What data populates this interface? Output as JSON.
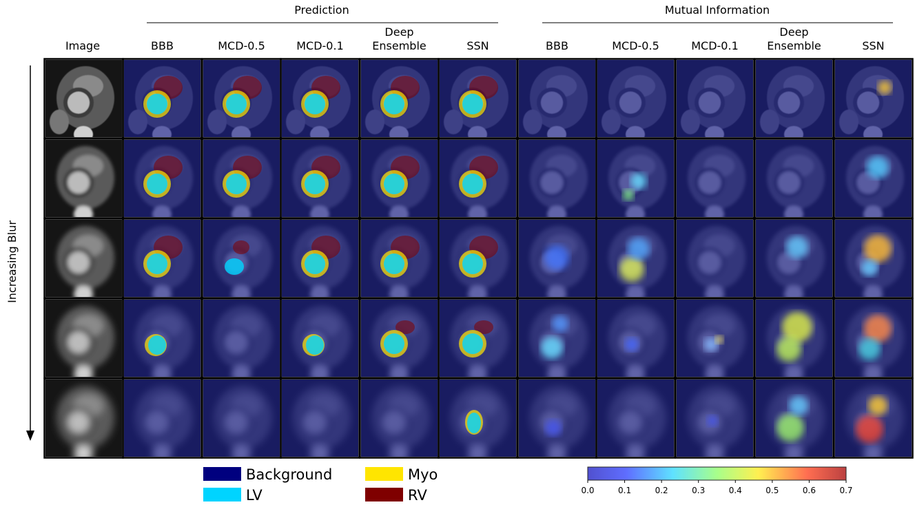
{
  "header": {
    "groups": [
      "Prediction",
      "Mutual Information"
    ]
  },
  "image_column": "Image",
  "prediction_columns": [
    [
      "BBB"
    ],
    [
      "MCD-0.5"
    ],
    [
      "MCD-0.1"
    ],
    [
      "Deep",
      "Ensemble"
    ],
    [
      "SSN"
    ]
  ],
  "mi_columns": [
    [
      "BBB"
    ],
    [
      "MCD-0.5"
    ],
    [
      "MCD-0.1"
    ],
    [
      "Deep",
      "Ensemble"
    ],
    [
      "SSN"
    ]
  ],
  "row_label": "Increasing Blur",
  "legend": [
    {
      "name": "Background",
      "color": "#00007f"
    },
    {
      "name": "LV",
      "color": "#00d4ff"
    },
    {
      "name": "Myo",
      "color": "#ffe500"
    },
    {
      "name": "RV",
      "color": "#7f0000"
    }
  ],
  "colorbar": {
    "ticks": [
      "0.0",
      "0.1",
      "0.2",
      "0.3",
      "0.4",
      "0.5",
      "0.6",
      "0.7"
    ]
  }
}
